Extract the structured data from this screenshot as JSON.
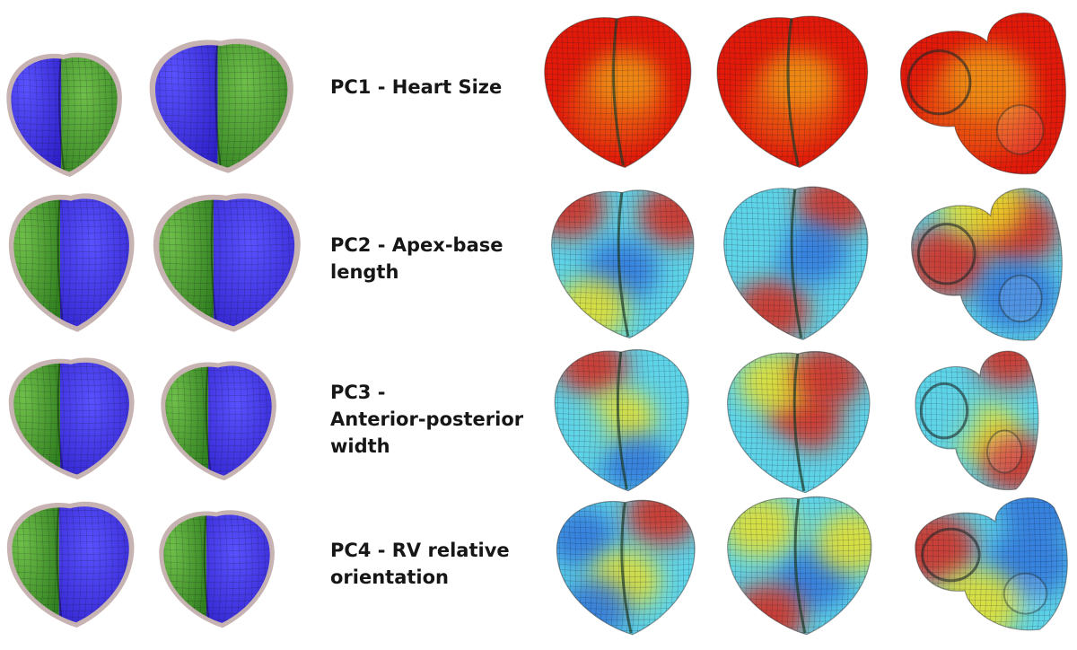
{
  "rows": [
    {
      "lines": [
        "PC1 - Heart Size"
      ],
      "maps": [
        "red",
        "red",
        "red"
      ]
    },
    {
      "lines": [
        "PC2 - Apex-base",
        "length"
      ],
      "maps": [
        "mix2a",
        "mix2b",
        "mix2c"
      ]
    },
    {
      "lines": [
        "PC3 -",
        "Anterior-posterior",
        "width"
      ],
      "maps": [
        "mix3a",
        "mix3b",
        "mix3c"
      ]
    },
    {
      "lines": [
        "PC4 - RV relative",
        "orientation"
      ],
      "maps": [
        "mix4a",
        "mix4b",
        "mix4c"
      ]
    }
  ],
  "colors": {
    "lv": "#2e7d1e",
    "rv": "#2d1fc8",
    "halo": "#b59a9a",
    "heat_high": "#e21a0a",
    "heat_mid": "#f4e21c",
    "heat_low": "#2f6fdc",
    "heat_cyan": "#5fd4e8"
  }
}
